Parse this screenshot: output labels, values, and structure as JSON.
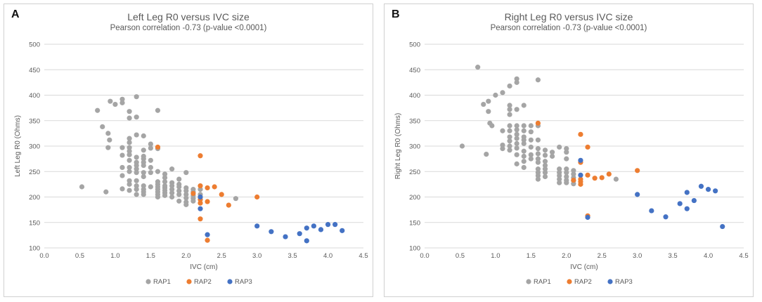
{
  "colors": {
    "RAP1": "#a5a5a5",
    "RAP2": "#ed7d31",
    "RAP3": "#4472c4",
    "grid": "#d9d9d9",
    "text": "#595959"
  },
  "chart_data": [
    {
      "panel_label": "A",
      "type": "scatter",
      "title": "Left Leg R0 versus IVC size",
      "subtitle": "Pearson correlation -0.73 (p-value <0.0001)",
      "xlabel": "IVC (cm)",
      "ylabel": "Left Leg R0 (Ohms)",
      "xlim": [
        0.0,
        4.5
      ],
      "ylim": [
        100,
        500
      ],
      "xticks": [
        "0.0",
        "0.5",
        "1.0",
        "1.5",
        "2.0",
        "2.5",
        "3.0",
        "3.5",
        "4.0",
        "4.5"
      ],
      "yticks": [
        "100",
        "150",
        "200",
        "250",
        "300",
        "350",
        "400",
        "450",
        "500"
      ],
      "grid": true,
      "legend_position": "bottom",
      "series": [
        {
          "name": "RAP1",
          "points": [
            [
              0.53,
              220
            ],
            [
              0.75,
              370
            ],
            [
              0.82,
              338
            ],
            [
              0.87,
              210
            ],
            [
              0.9,
              325
            ],
            [
              0.92,
              312
            ],
            [
              0.9,
              297
            ],
            [
              0.93,
              388
            ],
            [
              1.0,
              382
            ],
            [
              1.1,
              392
            ],
            [
              1.1,
              385
            ],
            [
              1.1,
              297
            ],
            [
              1.1,
              282
            ],
            [
              1.1,
              258
            ],
            [
              1.1,
              242
            ],
            [
              1.1,
              216
            ],
            [
              1.2,
              368
            ],
            [
              1.2,
              355
            ],
            [
              1.2,
              315
            ],
            [
              1.2,
              307
            ],
            [
              1.2,
              297
            ],
            [
              1.2,
              290
            ],
            [
              1.2,
              283
            ],
            [
              1.2,
              272
            ],
            [
              1.2,
              258
            ],
            [
              1.2,
              250
            ],
            [
              1.2,
              232
            ],
            [
              1.2,
              225
            ],
            [
              1.2,
              213
            ],
            [
              1.3,
              397
            ],
            [
              1.3,
              357
            ],
            [
              1.3,
              322
            ],
            [
              1.3,
              278
            ],
            [
              1.3,
              268
            ],
            [
              1.3,
              262
            ],
            [
              1.3,
              255
            ],
            [
              1.3,
              248
            ],
            [
              1.3,
              232
            ],
            [
              1.3,
              222
            ],
            [
              1.3,
              215
            ],
            [
              1.3,
              205
            ],
            [
              1.4,
              320
            ],
            [
              1.4,
              292
            ],
            [
              1.4,
              280
            ],
            [
              1.4,
              275
            ],
            [
              1.4,
              268
            ],
            [
              1.4,
              262
            ],
            [
              1.4,
              248
            ],
            [
              1.4,
              240
            ],
            [
              1.4,
              222
            ],
            [
              1.4,
              215
            ],
            [
              1.4,
              210
            ],
            [
              1.4,
              205
            ],
            [
              1.5,
              304
            ],
            [
              1.5,
              296
            ],
            [
              1.5,
              272
            ],
            [
              1.5,
              258
            ],
            [
              1.5,
              248
            ],
            [
              1.5,
              220
            ],
            [
              1.6,
              370
            ],
            [
              1.6,
              295
            ],
            [
              1.6,
              250
            ],
            [
              1.6,
              230
            ],
            [
              1.6,
              225
            ],
            [
              1.6,
              220
            ],
            [
              1.6,
              215
            ],
            [
              1.6,
              210
            ],
            [
              1.6,
              205
            ],
            [
              1.6,
              200
            ],
            [
              1.7,
              245
            ],
            [
              1.7,
              238
            ],
            [
              1.7,
              230
            ],
            [
              1.7,
              222
            ],
            [
              1.7,
              218
            ],
            [
              1.7,
              213
            ],
            [
              1.7,
              208
            ],
            [
              1.7,
              203
            ],
            [
              1.8,
              255
            ],
            [
              1.8,
              228
            ],
            [
              1.8,
              222
            ],
            [
              1.8,
              215
            ],
            [
              1.8,
              208
            ],
            [
              1.8,
              200
            ],
            [
              1.9,
              235
            ],
            [
              1.9,
              225
            ],
            [
              1.9,
              220
            ],
            [
              1.9,
              212
            ],
            [
              1.9,
              205
            ],
            [
              1.9,
              192
            ],
            [
              2.0,
              248
            ],
            [
              2.0,
              218
            ],
            [
              2.0,
              212
            ],
            [
              2.0,
              205
            ],
            [
              2.0,
              198
            ],
            [
              2.0,
              190
            ],
            [
              2.0,
              185
            ],
            [
              2.1,
              215
            ],
            [
              2.1,
              210
            ],
            [
              2.1,
              203
            ],
            [
              2.1,
              197
            ],
            [
              2.1,
              192
            ],
            [
              2.2,
              215
            ],
            [
              2.2,
              205
            ],
            [
              2.7,
              197
            ]
          ]
        },
        {
          "name": "RAP2",
          "points": [
            [
              1.6,
              298
            ],
            [
              2.1,
              207
            ],
            [
              2.2,
              281
            ],
            [
              2.2,
              222
            ],
            [
              2.2,
              195
            ],
            [
              2.2,
              188
            ],
            [
              2.2,
              157
            ],
            [
              2.3,
              218
            ],
            [
              2.3,
              191
            ],
            [
              2.3,
              115
            ],
            [
              2.4,
              220
            ],
            [
              2.5,
              205
            ],
            [
              2.6,
              184
            ],
            [
              3.0,
              200
            ]
          ]
        },
        {
          "name": "RAP3",
          "points": [
            [
              2.2,
              200
            ],
            [
              2.2,
              177
            ],
            [
              2.3,
              126
            ],
            [
              3.0,
              143
            ],
            [
              3.2,
              132
            ],
            [
              3.4,
              122
            ],
            [
              3.6,
              128
            ],
            [
              3.7,
              139
            ],
            [
              3.7,
              114
            ],
            [
              3.8,
              143
            ],
            [
              3.9,
              136
            ],
            [
              4.0,
              146
            ],
            [
              4.1,
              146
            ],
            [
              4.2,
              134
            ]
          ]
        }
      ]
    },
    {
      "panel_label": "B",
      "type": "scatter",
      "title": "Right Leg R0 versus IVC size",
      "subtitle": "Pearson correlation -0.73 (p-value <0.0001)",
      "xlabel": "IVC (cm)",
      "ylabel": "Right Leg R0 (Ohms)",
      "xlim": [
        0.0,
        4.5
      ],
      "ylim": [
        100,
        500
      ],
      "xticks": [
        "0.0",
        "0.5",
        "1.0",
        "1.5",
        "2.0",
        "2.5",
        "3.0",
        "3.5",
        "4.0",
        "4.5"
      ],
      "yticks": [
        "100",
        "150",
        "200",
        "250",
        "300",
        "350",
        "400",
        "450",
        "500"
      ],
      "grid": true,
      "legend_position": "bottom",
      "series": [
        {
          "name": "RAP1",
          "points": [
            [
              0.53,
              300
            ],
            [
              0.75,
              455
            ],
            [
              0.83,
              382
            ],
            [
              0.87,
              284
            ],
            [
              0.9,
              388
            ],
            [
              0.9,
              368
            ],
            [
              0.92,
              345
            ],
            [
              0.95,
              340
            ],
            [
              1.0,
              400
            ],
            [
              1.1,
              405
            ],
            [
              1.1,
              330
            ],
            [
              1.1,
              302
            ],
            [
              1.1,
              295
            ],
            [
              1.2,
              418
            ],
            [
              1.2,
              380
            ],
            [
              1.2,
              372
            ],
            [
              1.2,
              362
            ],
            [
              1.2,
              340
            ],
            [
              1.2,
              330
            ],
            [
              1.2,
              318
            ],
            [
              1.2,
              310
            ],
            [
              1.2,
              300
            ],
            [
              1.2,
              292
            ],
            [
              1.3,
              432
            ],
            [
              1.3,
              425
            ],
            [
              1.3,
              372
            ],
            [
              1.3,
              340
            ],
            [
              1.3,
              332
            ],
            [
              1.3,
              323
            ],
            [
              1.3,
              315
            ],
            [
              1.3,
              305
            ],
            [
              1.3,
              296
            ],
            [
              1.3,
              283
            ],
            [
              1.3,
              265
            ],
            [
              1.4,
              380
            ],
            [
              1.4,
              340
            ],
            [
              1.4,
              330
            ],
            [
              1.4,
              318
            ],
            [
              1.4,
              312
            ],
            [
              1.4,
              305
            ],
            [
              1.4,
              290
            ],
            [
              1.4,
              280
            ],
            [
              1.4,
              270
            ],
            [
              1.4,
              258
            ],
            [
              1.5,
              340
            ],
            [
              1.5,
              328
            ],
            [
              1.5,
              312
            ],
            [
              1.5,
              298
            ],
            [
              1.5,
              283
            ],
            [
              1.5,
              275
            ],
            [
              1.6,
              430
            ],
            [
              1.6,
              340
            ],
            [
              1.6,
              312
            ],
            [
              1.6,
              295
            ],
            [
              1.6,
              285
            ],
            [
              1.6,
              275
            ],
            [
              1.6,
              268
            ],
            [
              1.6,
              255
            ],
            [
              1.6,
              248
            ],
            [
              1.6,
              242
            ],
            [
              1.6,
              235
            ],
            [
              1.7,
              292
            ],
            [
              1.7,
              282
            ],
            [
              1.7,
              270
            ],
            [
              1.7,
              262
            ],
            [
              1.7,
              255
            ],
            [
              1.7,
              248
            ],
            [
              1.7,
              240
            ],
            [
              1.8,
              288
            ],
            [
              1.8,
              280
            ],
            [
              1.9,
              298
            ],
            [
              1.9,
              255
            ],
            [
              1.9,
              248
            ],
            [
              1.9,
              242
            ],
            [
              1.9,
              235
            ],
            [
              1.9,
              228
            ],
            [
              2.0,
              295
            ],
            [
              2.0,
              288
            ],
            [
              2.0,
              275
            ],
            [
              2.0,
              255
            ],
            [
              2.0,
              248
            ],
            [
              2.0,
              240
            ],
            [
              2.0,
              233
            ],
            [
              2.0,
              228
            ],
            [
              2.1,
              252
            ],
            [
              2.1,
              245
            ],
            [
              2.1,
              238
            ],
            [
              2.1,
              232
            ],
            [
              2.1,
              226
            ],
            [
              2.7,
              235
            ]
          ]
        },
        {
          "name": "RAP2",
          "points": [
            [
              1.6,
              345
            ],
            [
              2.1,
              233
            ],
            [
              2.2,
              323
            ],
            [
              2.2,
              268
            ],
            [
              2.2,
              235
            ],
            [
              2.2,
              230
            ],
            [
              2.2,
              225
            ],
            [
              2.3,
              298
            ],
            [
              2.3,
              243
            ],
            [
              2.3,
              163
            ],
            [
              2.4,
              237
            ],
            [
              2.5,
              238
            ],
            [
              2.6,
              245
            ],
            [
              3.0,
              252
            ]
          ]
        },
        {
          "name": "RAP3",
          "points": [
            [
              2.2,
              272
            ],
            [
              2.2,
              243
            ],
            [
              2.3,
              160
            ],
            [
              3.0,
              205
            ],
            [
              3.2,
              173
            ],
            [
              3.4,
              161
            ],
            [
              3.6,
              187
            ],
            [
              3.7,
              209
            ],
            [
              3.7,
              177
            ],
            [
              3.8,
              193
            ],
            [
              3.9,
              221
            ],
            [
              4.0,
              215
            ],
            [
              4.1,
              212
            ],
            [
              4.2,
              142
            ]
          ]
        }
      ]
    }
  ]
}
